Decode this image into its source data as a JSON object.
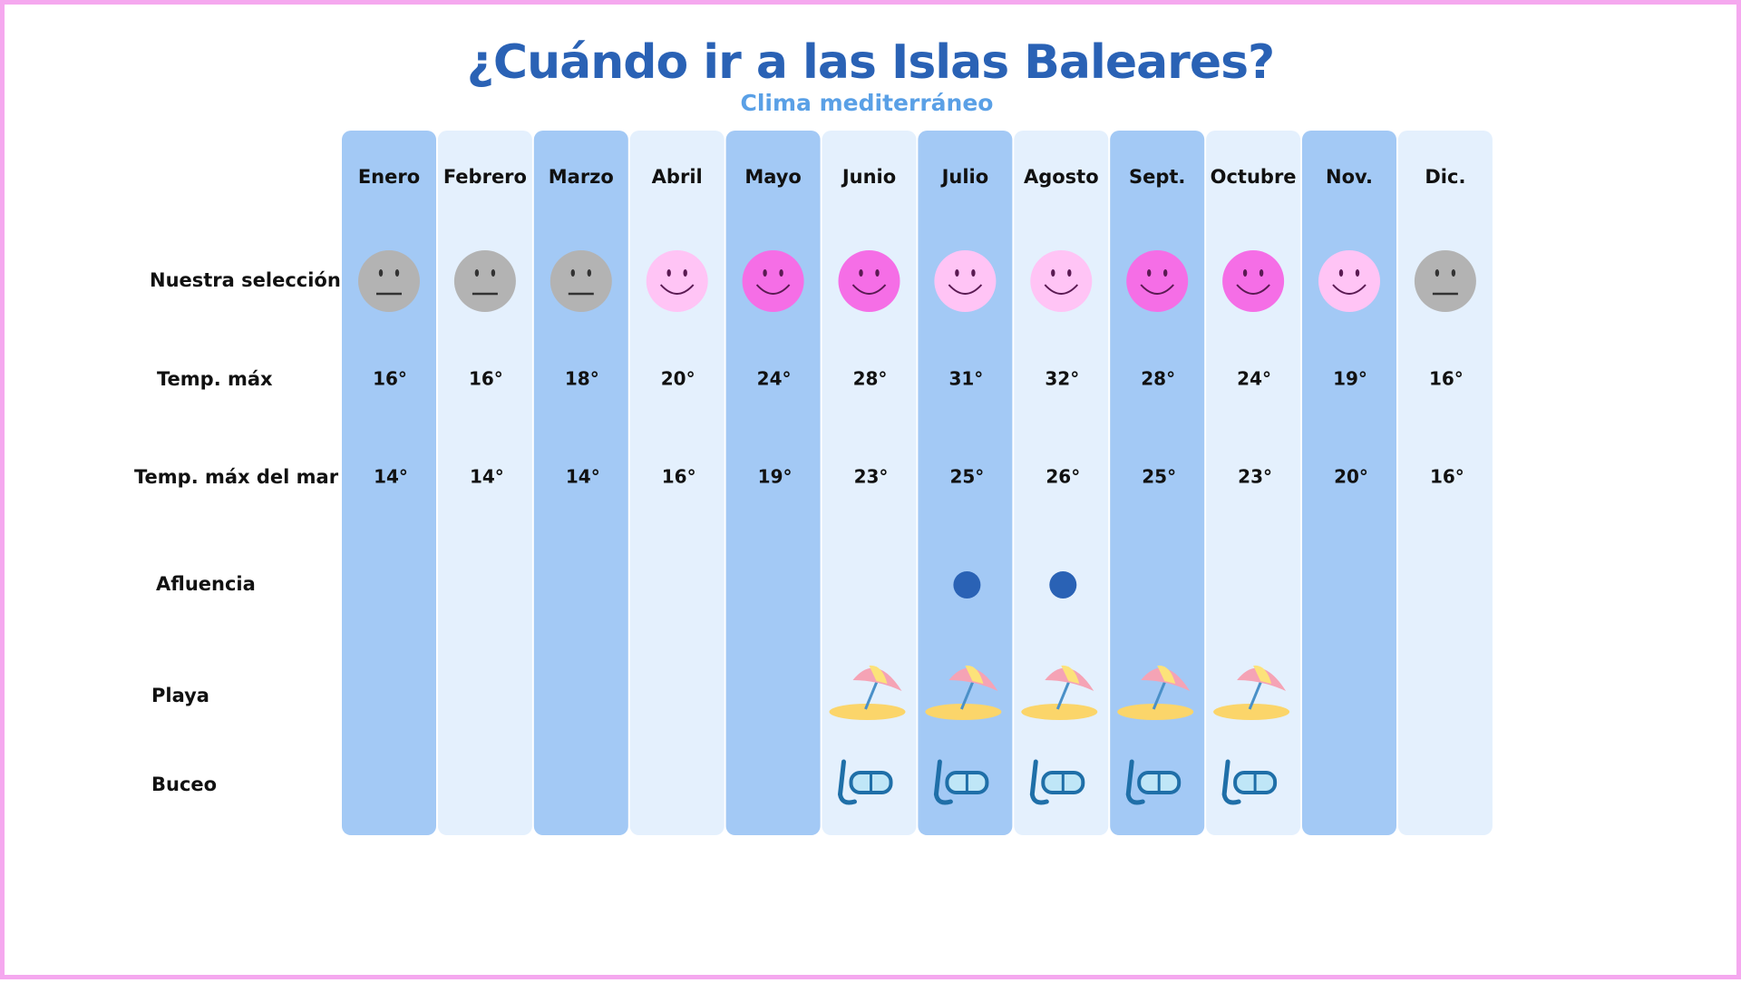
{
  "header": {
    "title": "¿Cuándo ir a las Islas Baleares?",
    "subtitle": "Clima mediterráneo"
  },
  "table": {
    "months": [
      "Enero",
      "Febrero",
      "Marzo",
      "Abril",
      "Mayo",
      "Junio",
      "Julio",
      "Agosto",
      "Sept.",
      "Octubre",
      "Nov.",
      "Dic."
    ],
    "row_labels": [
      "Nuestra selección",
      "Temp. máx",
      "Temp. máx del mar",
      "Afluencia",
      "Playa",
      "Buceo"
    ],
    "seleccion": [
      0,
      0,
      0,
      1,
      2,
      2,
      1,
      1,
      2,
      2,
      1,
      0
    ],
    "temp_max": [
      "16°",
      "16°",
      "18°",
      "20°",
      "24°",
      "28°",
      "31°",
      "32°",
      "28°",
      "24°",
      "19°",
      "16°"
    ],
    "temp_mar": [
      "14°",
      "14°",
      "14°",
      "16°",
      "19°",
      "23°",
      "25°",
      "26°",
      "25°",
      "23°",
      "20°",
      "16°"
    ],
    "afluencia": [
      false,
      false,
      false,
      false,
      false,
      false,
      true,
      true,
      false,
      false,
      false,
      false
    ],
    "playa": [
      false,
      false,
      false,
      false,
      false,
      true,
      true,
      true,
      true,
      true,
      false,
      false
    ],
    "buceo": [
      false,
      false,
      false,
      false,
      false,
      true,
      true,
      true,
      true,
      true,
      false,
      false
    ]
  }
}
